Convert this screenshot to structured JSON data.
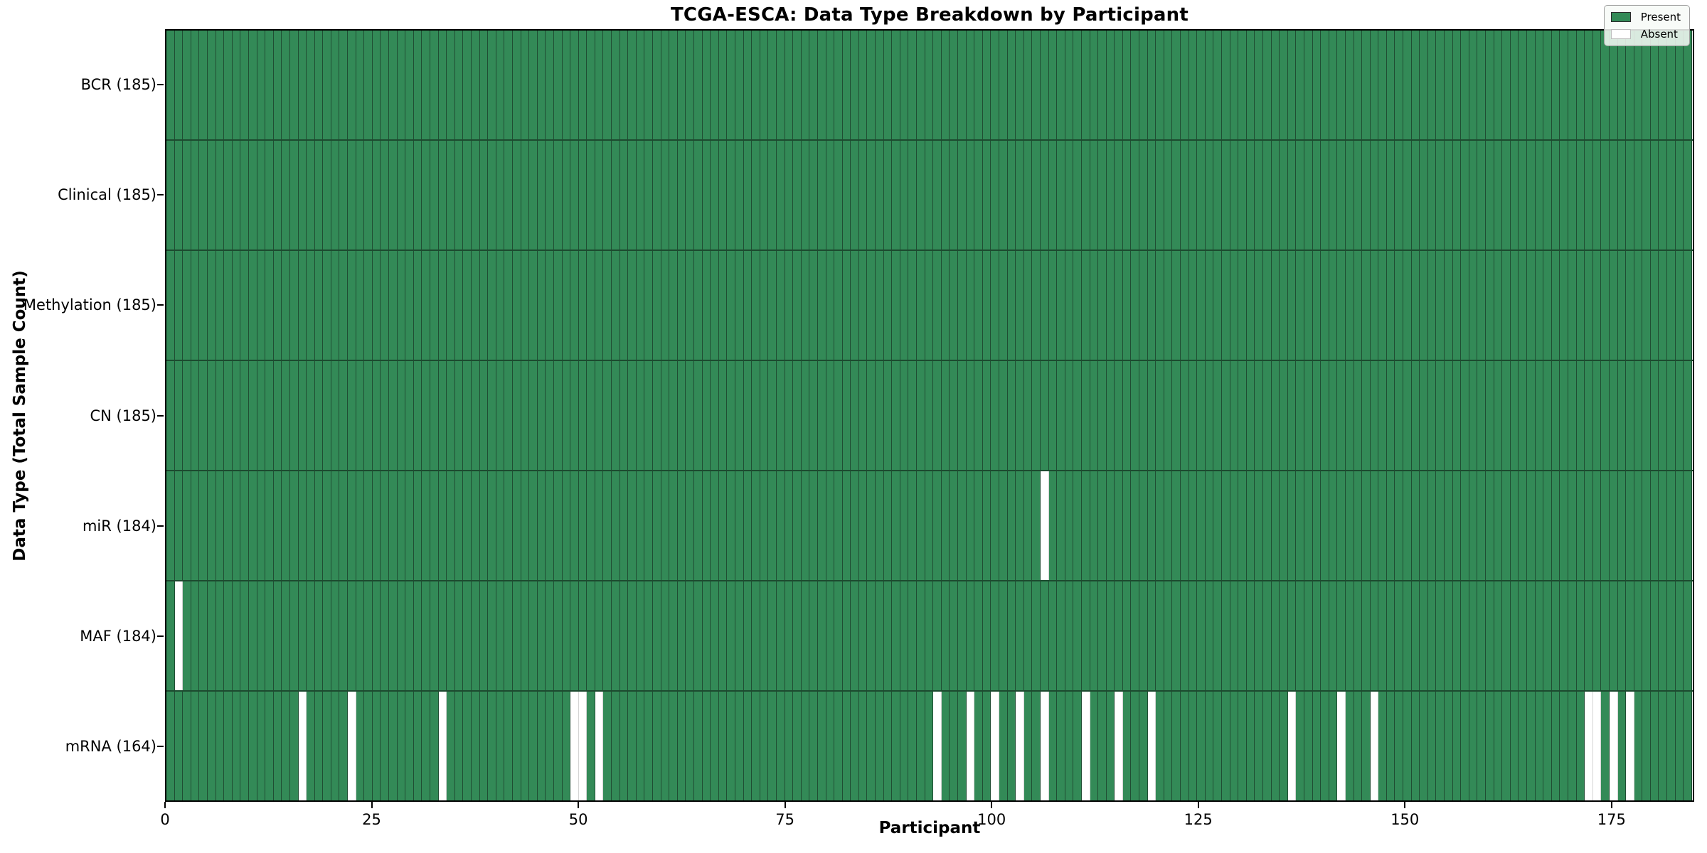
{
  "title": "TCGA-ESCA: Data Type Breakdown by Participant",
  "x_axis": {
    "label": "Participant",
    "ticks": [
      0,
      25,
      50,
      75,
      100,
      125,
      150,
      175
    ]
  },
  "y_axis": {
    "label": "Data Type (Total Sample Count)"
  },
  "legend": {
    "items": [
      {
        "label": "Present",
        "color": "#338a57"
      },
      {
        "label": "Absent",
        "color": "#ffffff"
      }
    ]
  },
  "colors": {
    "present_fill": "#338a57",
    "present_edge": "#204d33",
    "absent_fill": "#ffffff",
    "absent_edge": "#d4d4d4",
    "row_separator": "#1c4a2f",
    "spine": "#000000"
  },
  "chart_data": {
    "type": "heatmap",
    "title": "TCGA-ESCA: Data Type Breakdown by Participant",
    "xlabel": "Participant",
    "ylabel": "Data Type (Total Sample Count)",
    "x_range": [
      0,
      185
    ],
    "n_participants": 185,
    "legend_position": "upper right",
    "value_encoding": {
      "present": "green cell",
      "absent": "white cell"
    },
    "rows": [
      {
        "label": "BCR (185)",
        "data_type": "BCR",
        "present_count": 185,
        "absent_participants": []
      },
      {
        "label": "Clinical (185)",
        "data_type": "Clinical",
        "present_count": 185,
        "absent_participants": []
      },
      {
        "label": "Methylation (185)",
        "data_type": "Methylation",
        "present_count": 185,
        "absent_participants": []
      },
      {
        "label": "CN (185)",
        "data_type": "CN",
        "present_count": 185,
        "absent_participants": []
      },
      {
        "label": "miR (184)",
        "data_type": "miR",
        "present_count": 184,
        "absent_participants": [
          106
        ]
      },
      {
        "label": "MAF (184)",
        "data_type": "MAF",
        "present_count": 184,
        "absent_participants": [
          1
        ]
      },
      {
        "label": "mRNA (164)",
        "data_type": "mRNA",
        "present_count": 164,
        "absent_participants": [
          16,
          22,
          33,
          49,
          50,
          52,
          93,
          97,
          100,
          103,
          106,
          111,
          115,
          119,
          136,
          142,
          146,
          172,
          173,
          175,
          177
        ]
      }
    ]
  }
}
